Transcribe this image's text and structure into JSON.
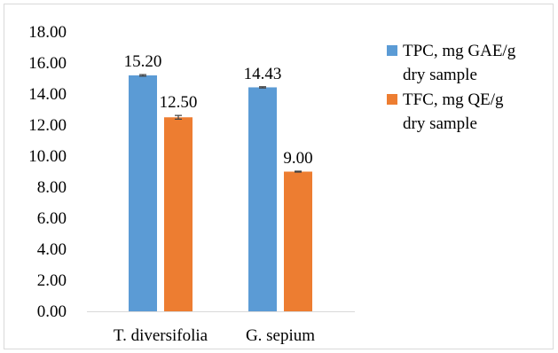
{
  "chart_data": {
    "type": "bar",
    "title": "",
    "xlabel": "",
    "ylabel": "",
    "categories": [
      "T. diversifolia",
      "G. sepium"
    ],
    "series": [
      {
        "name": "TPC, mg GAE/g dry sample",
        "legend_lines": [
          "TPC, mg GAE/g",
          "dry sample"
        ],
        "color": "#5b9bd5",
        "values": [
          15.2,
          14.43
        ],
        "value_labels": [
          "15.20",
          "14.43"
        ],
        "error": [
          0.05,
          0.04
        ]
      },
      {
        "name": "TFC, mg QE/g dry sample",
        "legend_lines": [
          "TFC, mg QE/g",
          "dry sample"
        ],
        "color": "#ed7d31",
        "values": [
          12.5,
          9.0
        ],
        "value_labels": [
          "12.50",
          "9.00"
        ],
        "error": [
          0.12,
          0.03
        ]
      }
    ],
    "ylim": [
      0,
      18
    ],
    "yticks": [
      "0.00",
      "2.00",
      "4.00",
      "6.00",
      "8.00",
      "10.00",
      "12.00",
      "14.00",
      "16.00",
      "18.00"
    ],
    "grid": false,
    "legend_position": "right"
  }
}
